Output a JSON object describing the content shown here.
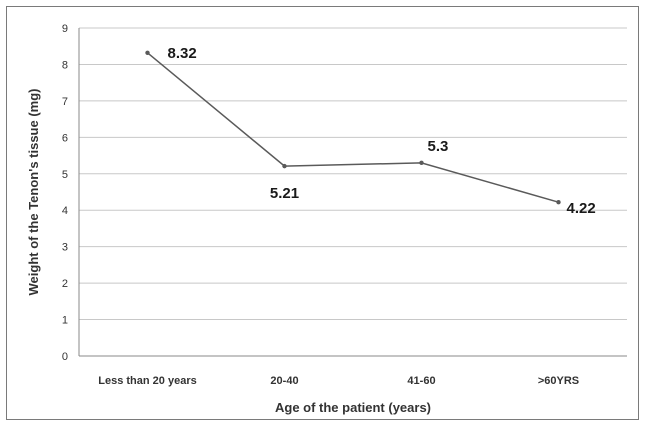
{
  "chart_data": {
    "type": "line",
    "categories": [
      "Less than 20 years",
      "20-40",
      "41-60",
      ">60YRS"
    ],
    "series": [
      {
        "values": [
          8.32,
          5.21,
          5.3,
          4.22
        ],
        "data_labels": [
          "8.32",
          "5.21",
          "5.3",
          "4.22"
        ]
      }
    ],
    "xlabel": "Age of the patient (years)",
    "ylabel": "Weight of the Tenon's tissue (mg)",
    "ylim": [
      0,
      9
    ],
    "yticks": [
      0,
      1,
      2,
      3,
      4,
      5,
      6,
      7,
      8,
      9
    ],
    "grid": true,
    "line_color": "#5a5a5a",
    "grid_color": "#c8c8c8"
  }
}
